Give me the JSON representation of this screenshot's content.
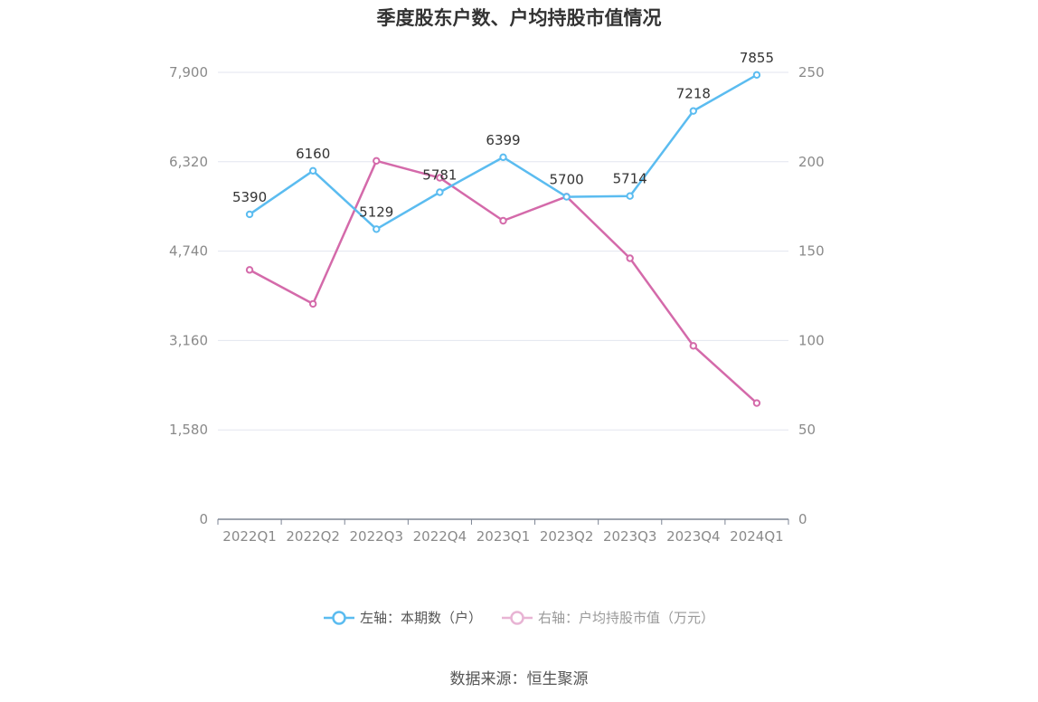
{
  "chart_data": {
    "type": "line",
    "title": "季度股东户数、户均持股市值情况",
    "categories": [
      "2022Q1",
      "2022Q2",
      "2022Q3",
      "2022Q4",
      "2023Q1",
      "2023Q2",
      "2023Q3",
      "2023Q4",
      "2024Q1"
    ],
    "left_axis": {
      "ticks": [
        "0",
        "1,580",
        "3,160",
        "4,740",
        "6,320",
        "7,900"
      ],
      "ylim": [
        0,
        7900
      ]
    },
    "right_axis": {
      "ticks": [
        "0",
        "50",
        "100",
        "150",
        "200",
        "250"
      ],
      "ylim": [
        0,
        250
      ]
    },
    "series": [
      {
        "name": "左轴：本期数（户）",
        "axis": "left",
        "color": "#5bbcf0",
        "values": [
          5390,
          6160,
          5129,
          5781,
          6399,
          5700,
          5714,
          7218,
          7855
        ],
        "labels": [
          "5390",
          "6160",
          "5129",
          "5781",
          "6399",
          "5700",
          "5714",
          "7218",
          "7855"
        ]
      },
      {
        "name": "右轴：户均持股市值（万元）",
        "axis": "right",
        "color": "#d46aaa",
        "values": [
          139.5,
          120.5,
          200.5,
          191.0,
          167.0,
          180.5,
          146.0,
          97.0,
          65.0
        ]
      }
    ],
    "grid": true,
    "legend_position": "bottom"
  },
  "source": "数据来源：恒生聚源"
}
